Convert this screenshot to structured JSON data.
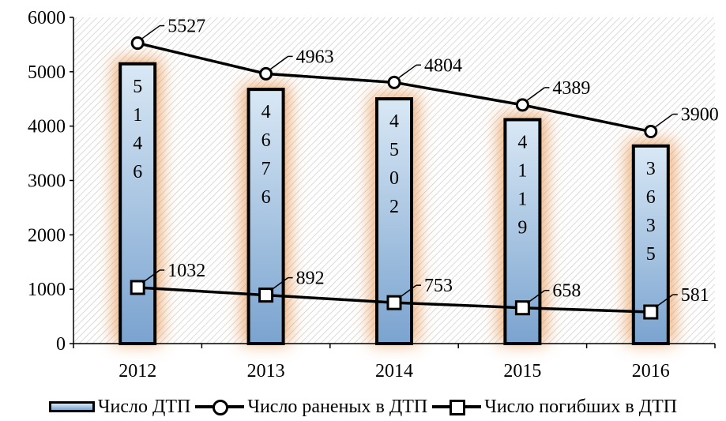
{
  "chart_data": {
    "type": "bar",
    "categories": [
      "2012",
      "2013",
      "2014",
      "2015",
      "2016"
    ],
    "ylim": [
      0,
      6000
    ],
    "yticks": [
      0,
      1000,
      2000,
      3000,
      4000,
      5000,
      6000
    ],
    "series": [
      {
        "name": "Число ДТП",
        "type": "bar",
        "values": [
          5146,
          4676,
          4502,
          4119,
          3635
        ],
        "labels": [
          "5146",
          "4676",
          "4502",
          "4119",
          "3635"
        ]
      },
      {
        "name": "Число раненых в ДТП",
        "type": "line",
        "marker": "circle",
        "values": [
          5527,
          4963,
          4804,
          4389,
          3900
        ],
        "labels": [
          "5527",
          "4963",
          "4804",
          "4389",
          "3900"
        ]
      },
      {
        "name": "Число погибших в ДТП",
        "type": "line",
        "marker": "square",
        "values": [
          1032,
          892,
          753,
          658,
          581
        ],
        "labels": [
          "1032",
          "892",
          "753",
          "658",
          "581"
        ]
      }
    ],
    "legend_position": "bottom",
    "grid": false,
    "colors": {
      "bar_top": "#d9e8f5",
      "bar_bottom": "#7aa3cf",
      "glow": "#e8944e",
      "line": "#000000"
    }
  },
  "legend": {
    "bars": "Число ДТП",
    "injured": "Число раненых в ДТП",
    "killed": "Число погибших в ДТП"
  }
}
